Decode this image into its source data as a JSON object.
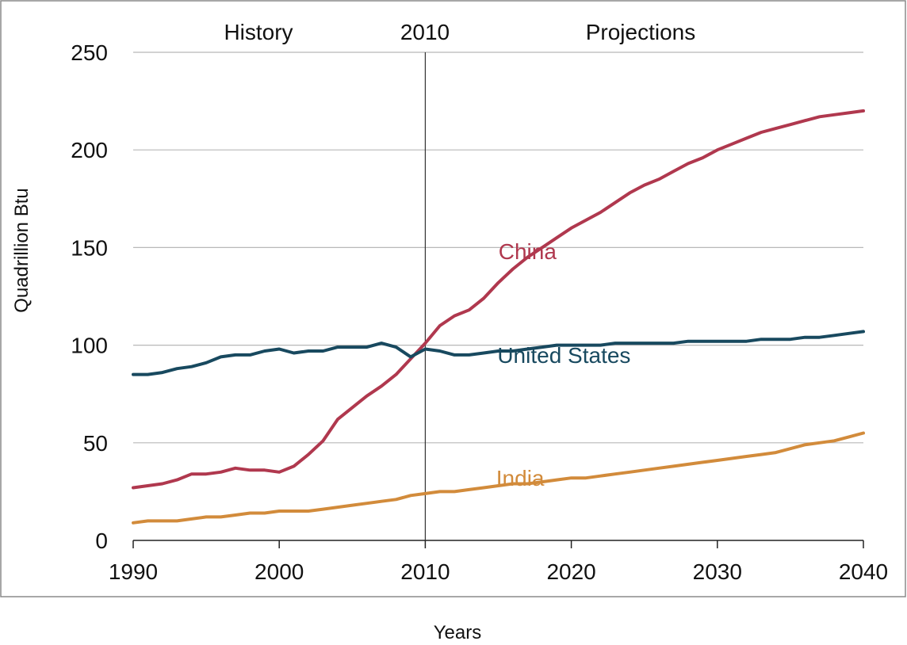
{
  "chart_data": {
    "type": "line",
    "title": "",
    "xlabel": "Years",
    "ylabel": "Quadrillion Btu",
    "xlim": [
      1990,
      2040
    ],
    "ylim": [
      0,
      250
    ],
    "x_ticks": [
      "1990",
      "2000",
      "2010",
      "2020",
      "2030",
      "2040"
    ],
    "y_ticks": [
      "0",
      "50",
      "100",
      "150",
      "200",
      "250"
    ],
    "grid": "horizontal",
    "divider_year": 2010,
    "annotations": {
      "history": "History",
      "divider": "2010",
      "projections": "Projections"
    },
    "series": [
      {
        "name": "China",
        "color": "#b0384e",
        "x": [
          1990,
          1991,
          1992,
          1993,
          1994,
          1995,
          1996,
          1997,
          1998,
          1999,
          2000,
          2001,
          2002,
          2003,
          2004,
          2005,
          2006,
          2007,
          2008,
          2009,
          2010,
          2011,
          2012,
          2013,
          2014,
          2015,
          2016,
          2017,
          2018,
          2019,
          2020,
          2021,
          2022,
          2023,
          2024,
          2025,
          2026,
          2027,
          2028,
          2029,
          2030,
          2031,
          2032,
          2033,
          2034,
          2035,
          2036,
          2037,
          2038,
          2039,
          2040
        ],
        "values": [
          27,
          28,
          29,
          31,
          34,
          34,
          35,
          37,
          36,
          36,
          35,
          38,
          44,
          51,
          62,
          68,
          74,
          79,
          85,
          93,
          101,
          110,
          115,
          118,
          124,
          132,
          139,
          145,
          150,
          155,
          160,
          164,
          168,
          173,
          178,
          182,
          185,
          189,
          193,
          196,
          200,
          203,
          206,
          209,
          211,
          213,
          215,
          217,
          218,
          219,
          220
        ]
      },
      {
        "name": "United States",
        "color": "#18495f",
        "x": [
          1990,
          1991,
          1992,
          1993,
          1994,
          1995,
          1996,
          1997,
          1998,
          1999,
          2000,
          2001,
          2002,
          2003,
          2004,
          2005,
          2006,
          2007,
          2008,
          2009,
          2010,
          2011,
          2012,
          2013,
          2014,
          2015,
          2016,
          2017,
          2018,
          2019,
          2020,
          2021,
          2022,
          2023,
          2024,
          2025,
          2026,
          2027,
          2028,
          2029,
          2030,
          2031,
          2032,
          2033,
          2034,
          2035,
          2036,
          2037,
          2038,
          2039,
          2040
        ],
        "values": [
          85,
          85,
          86,
          88,
          89,
          91,
          94,
          95,
          95,
          97,
          98,
          96,
          97,
          97,
          99,
          99,
          99,
          101,
          99,
          94,
          98,
          97,
          95,
          95,
          96,
          97,
          97,
          98,
          99,
          100,
          100,
          100,
          100,
          101,
          101,
          101,
          101,
          101,
          102,
          102,
          102,
          102,
          102,
          103,
          103,
          103,
          104,
          104,
          105,
          106,
          107
        ]
      },
      {
        "name": "India",
        "color": "#d28b3b",
        "x": [
          1990,
          1991,
          1992,
          1993,
          1994,
          1995,
          1996,
          1997,
          1998,
          1999,
          2000,
          2001,
          2002,
          2003,
          2004,
          2005,
          2006,
          2007,
          2008,
          2009,
          2010,
          2011,
          2012,
          2013,
          2014,
          2015,
          2016,
          2017,
          2018,
          2019,
          2020,
          2021,
          2022,
          2023,
          2024,
          2025,
          2026,
          2027,
          2028,
          2029,
          2030,
          2031,
          2032,
          2033,
          2034,
          2035,
          2036,
          2037,
          2038,
          2039,
          2040
        ],
        "values": [
          9,
          10,
          10,
          10,
          11,
          12,
          12,
          13,
          14,
          14,
          15,
          15,
          15,
          16,
          17,
          18,
          19,
          20,
          21,
          23,
          24,
          25,
          25,
          26,
          27,
          28,
          29,
          29,
          30,
          31,
          32,
          32,
          33,
          34,
          35,
          36,
          37,
          38,
          39,
          40,
          41,
          42,
          43,
          44,
          45,
          47,
          49,
          50,
          51,
          53,
          55
        ]
      }
    ],
    "series_labels": [
      {
        "text": "China",
        "at_year": 2017,
        "at_value": 144
      },
      {
        "text": "United States",
        "at_year": 2019.5,
        "at_value": 91
      },
      {
        "text": "India",
        "at_year": 2016.5,
        "at_value": 28
      }
    ]
  }
}
